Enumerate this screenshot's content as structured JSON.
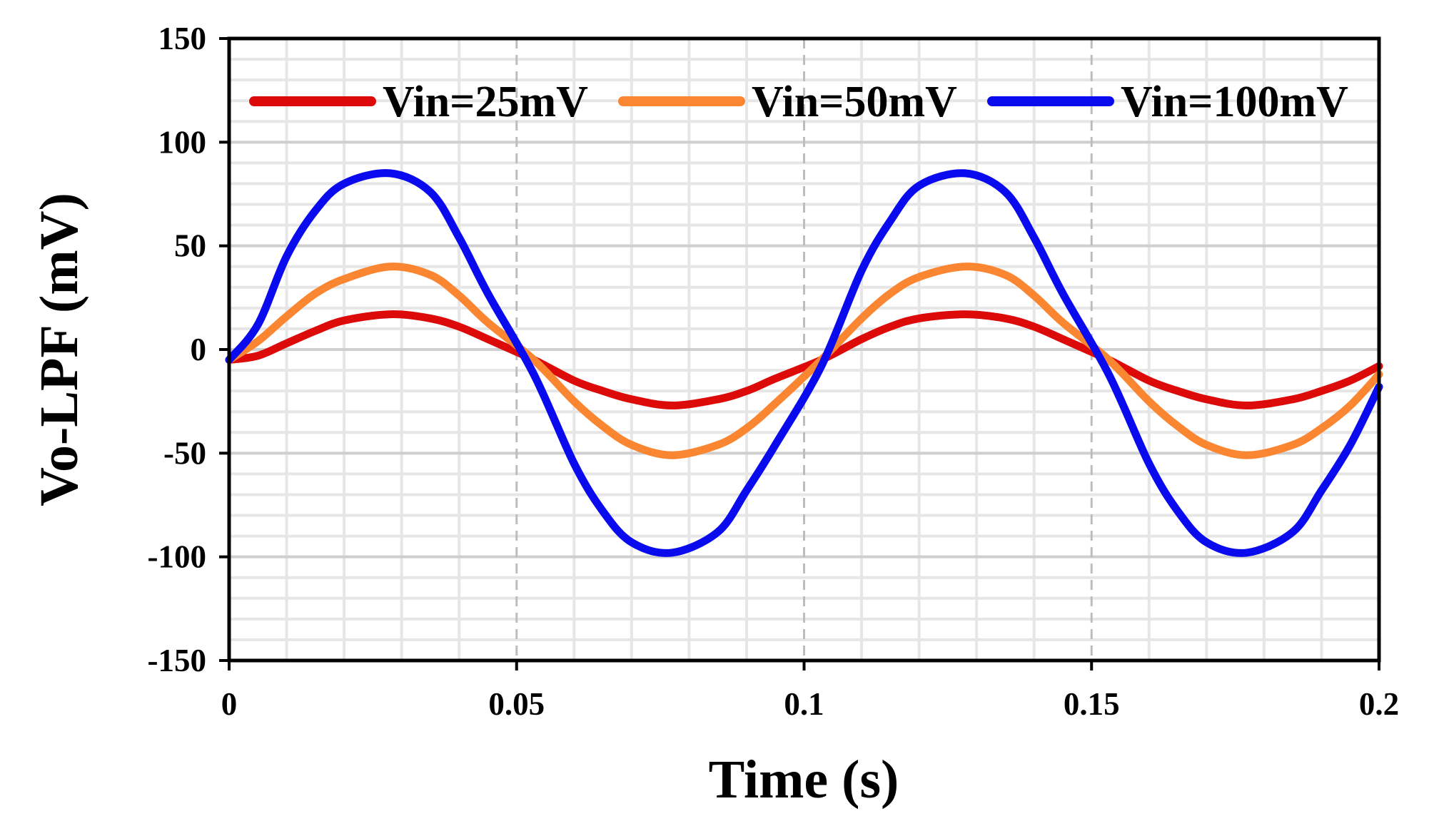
{
  "chart_data": {
    "type": "line",
    "title": "",
    "xlabel": "Time (s)",
    "ylabel": "Vo-LPF (mV)",
    "xlim": [
      0,
      0.2
    ],
    "ylim": [
      -150,
      150
    ],
    "x_ticks": [
      0,
      0.05,
      0.1,
      0.15,
      0.2
    ],
    "x_tick_labels": [
      "0",
      "0.05",
      "0.1",
      "0.15",
      "0.2"
    ],
    "y_ticks": [
      150,
      100,
      50,
      0,
      -50,
      -100,
      -150
    ],
    "y_tick_labels": [
      "150",
      "100",
      "50",
      "0",
      "-50",
      "-100",
      "-150"
    ],
    "grid": true,
    "legend_position": "top",
    "series": [
      {
        "name": "Vin=25mV",
        "color": "#dd0a0a",
        "x": [
          0,
          0.005,
          0.01,
          0.015,
          0.02,
          0.028,
          0.035,
          0.04,
          0.045,
          0.053,
          0.06,
          0.065,
          0.07,
          0.077,
          0.085,
          0.09,
          0.095,
          0.103,
          0.11,
          0.115,
          0.12,
          0.128,
          0.135,
          0.14,
          0.145,
          0.153,
          0.16,
          0.165,
          0.17,
          0.177,
          0.185,
          0.19,
          0.195,
          0.2
        ],
        "values": [
          -5,
          -3,
          3,
          9,
          14,
          17,
          15,
          11,
          5,
          -5,
          -15,
          -20,
          -24,
          -27,
          -24,
          -20,
          -14,
          -5,
          5,
          11,
          15,
          17,
          15,
          11,
          5,
          -5,
          -15,
          -20,
          -24,
          -27,
          -24,
          -20,
          -15,
          -8
        ]
      },
      {
        "name": "Vin=50mV",
        "color": "#fb8632",
        "x": [
          0,
          0.005,
          0.01,
          0.015,
          0.02,
          0.028,
          0.035,
          0.04,
          0.045,
          0.053,
          0.06,
          0.065,
          0.07,
          0.077,
          0.085,
          0.09,
          0.095,
          0.103,
          0.11,
          0.115,
          0.12,
          0.128,
          0.135,
          0.14,
          0.145,
          0.153,
          0.16,
          0.165,
          0.17,
          0.177,
          0.185,
          0.19,
          0.195,
          0.2
        ],
        "values": [
          -5,
          4,
          16,
          27,
          34,
          40,
          36,
          26,
          13,
          -5,
          -25,
          -37,
          -46,
          -51,
          -46,
          -38,
          -26,
          -5,
          15,
          27,
          35,
          40,
          36,
          26,
          13,
          -5,
          -25,
          -37,
          -46,
          -51,
          -46,
          -38,
          -27,
          -12
        ]
      },
      {
        "name": "Vin=100mV",
        "color": "#0a0aee",
        "x": [
          0,
          0.005,
          0.01,
          0.015,
          0.02,
          0.028,
          0.035,
          0.04,
          0.045,
          0.053,
          0.06,
          0.065,
          0.07,
          0.077,
          0.085,
          0.09,
          0.095,
          0.103,
          0.11,
          0.115,
          0.12,
          0.128,
          0.135,
          0.14,
          0.145,
          0.153,
          0.16,
          0.165,
          0.17,
          0.177,
          0.185,
          0.19,
          0.195,
          0.2
        ],
        "values": [
          -5,
          12,
          45,
          67,
          80,
          85,
          76,
          54,
          27,
          -12,
          -55,
          -78,
          -93,
          -98,
          -88,
          -68,
          -46,
          -8,
          38,
          62,
          79,
          85,
          76,
          54,
          27,
          -12,
          -55,
          -78,
          -93,
          -98,
          -88,
          -68,
          -46,
          -18
        ]
      }
    ]
  }
}
